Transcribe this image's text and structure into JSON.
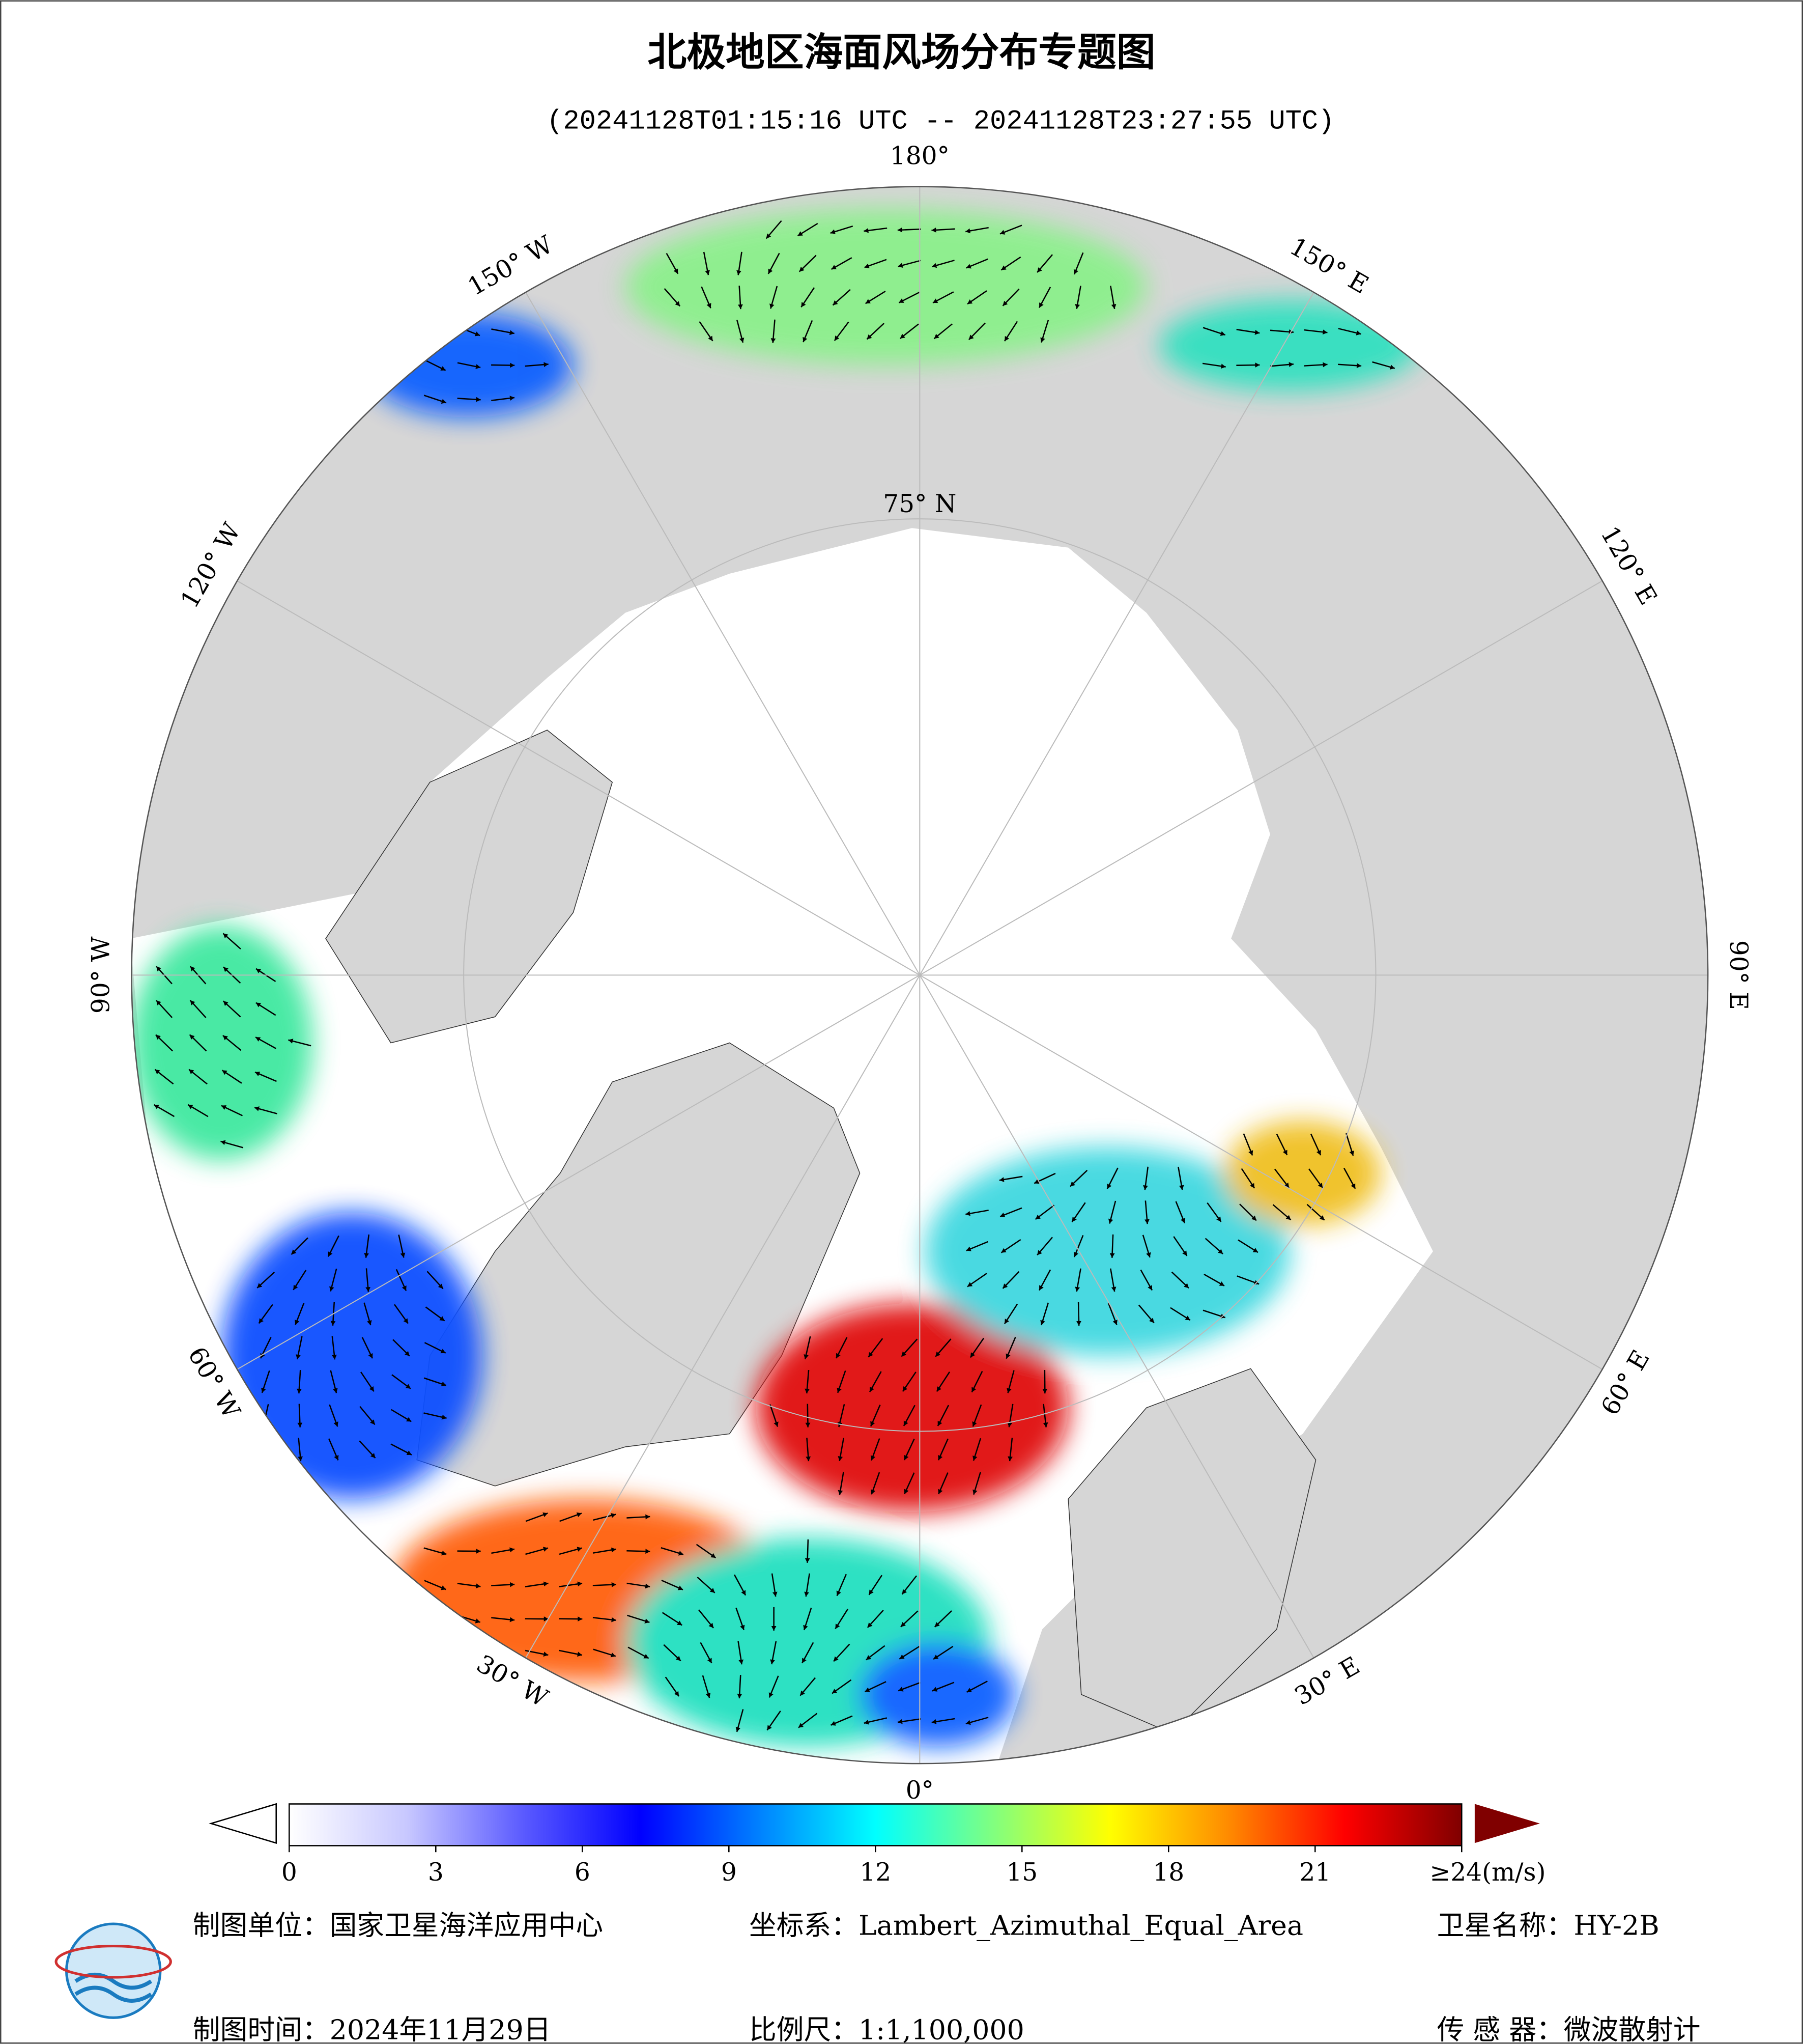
{
  "header": {
    "title": "北极地区海面风场分布专题图",
    "subtitle": "(20241128T01:15:16 UTC -- 20241128T23:27:55 UTC)"
  },
  "map": {
    "longitude_labels": [
      {
        "value": 180,
        "label": "180°"
      },
      {
        "value": 150,
        "label": "150° E"
      },
      {
        "value": 120,
        "label": "120° E"
      },
      {
        "value": 90,
        "label": "90° E"
      },
      {
        "value": 60,
        "label": "60° E"
      },
      {
        "value": 30,
        "label": "30° E"
      },
      {
        "value": 0,
        "label": "0°"
      },
      {
        "value": -30,
        "label": "30° W"
      },
      {
        "value": -60,
        "label": "60° W"
      },
      {
        "value": -90,
        "label": "90° W"
      },
      {
        "value": -120,
        "label": "120° W"
      },
      {
        "value": -150,
        "label": "150° W"
      }
    ],
    "latitude_label": {
      "value": 75,
      "label": "75° N"
    }
  },
  "colorbar": {
    "range": [
      0,
      24
    ],
    "colors": [
      "#ffffff",
      "#c8c8ff",
      "#5a5aff",
      "#0000ff",
      "#0080ff",
      "#00ffff",
      "#80ff80",
      "#ffff00",
      "#ff8c00",
      "#ff0000",
      "#800000"
    ],
    "ticks": [
      0,
      3,
      6,
      9,
      12,
      15,
      18,
      21,
      {
        "value": 24,
        "label": "≥24(m/s)"
      }
    ]
  },
  "footer": {
    "unit": "制图单位：国家卫星海洋应用中心",
    "crs": "坐标系：Lambert_Azimuthal_Equal_Area",
    "satellite": "卫星名称：HY-2B",
    "date": "制图时间：2024年11月29日",
    "scale": "比例尺：1:1,100,000",
    "sensor": "传 感 器：微波散射计"
  }
}
